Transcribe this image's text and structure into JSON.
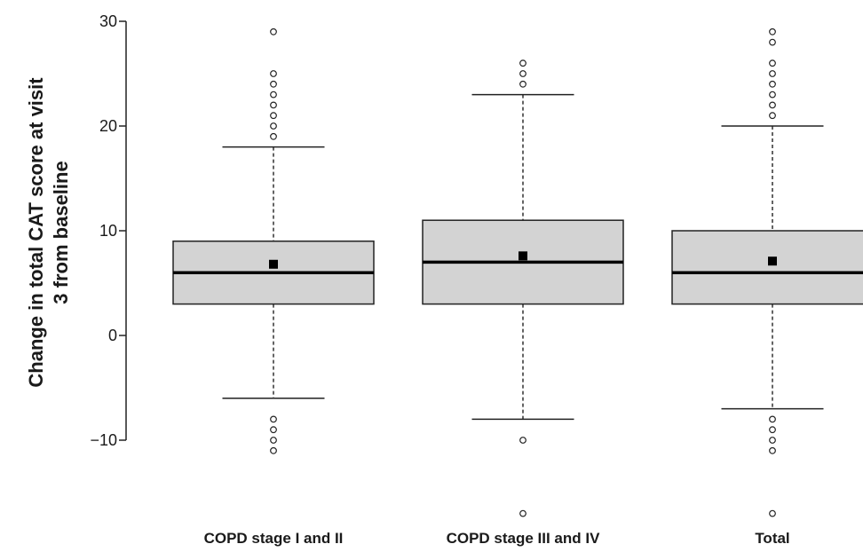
{
  "chart_data": {
    "type": "boxplot",
    "title": "",
    "xlabel": "",
    "ylabel_lines": [
      "Change in total CAT score at visit",
      "3 from baseline"
    ],
    "ylim": [
      -20,
      30
    ],
    "yticks": [
      -10,
      0,
      10,
      20,
      30
    ],
    "ytick_labels": [
      "−10",
      "0",
      "10",
      "20",
      "30"
    ],
    "grid": false,
    "colors": {
      "box_fill": "#d3d3d3",
      "stroke": "#222222",
      "mean_marker": "#000000"
    },
    "categories": [
      "COPD stage I and II",
      "COPD stage III and IV",
      "Total"
    ],
    "boxes": [
      {
        "category": "COPD stage I and II",
        "q1": 3,
        "median": 6,
        "q3": 9,
        "whisker_low": -6,
        "whisker_high": 18,
        "mean": 6.8,
        "outliers": [
          19,
          20,
          21,
          22,
          23,
          24,
          25,
          29,
          -8,
          -9,
          -10,
          -11
        ]
      },
      {
        "category": "COPD stage III and IV",
        "q1": 3,
        "median": 7,
        "q3": 11,
        "whisker_low": -8,
        "whisker_high": 23,
        "mean": 7.6,
        "outliers": [
          24,
          25,
          26,
          -10,
          -17
        ]
      },
      {
        "category": "Total",
        "q1": 3,
        "median": 6,
        "q3": 10,
        "whisker_low": -7,
        "whisker_high": 20,
        "mean": 7.1,
        "outliers": [
          21,
          22,
          23,
          24,
          25,
          26,
          28,
          29,
          -8,
          -9,
          -10,
          -11,
          -17
        ]
      }
    ]
  }
}
